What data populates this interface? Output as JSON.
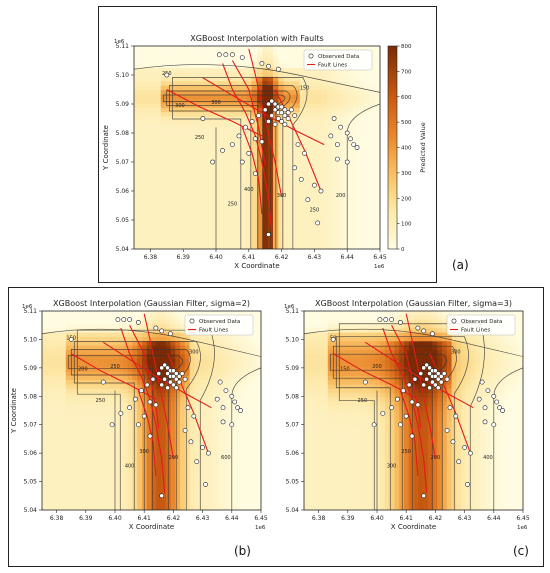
{
  "panel_letters": [
    "(a)",
    "(b)",
    "(c)"
  ],
  "chart_data": [
    {
      "type": "heatmap",
      "title": "XGBoost Interpolation with Faults",
      "xlabel": "X Coordinate",
      "ylabel": "Y Coordinate",
      "x_offset_label": "1e6",
      "y_offset_label": "1e6",
      "xlim": [
        6.375,
        6.45
      ],
      "ylim": [
        5.04,
        5.11
      ],
      "xticks": [
        "6.38",
        "6.39",
        "6.40",
        "6.41",
        "6.42",
        "6.43",
        "6.44",
        "6.45"
      ],
      "yticks": [
        "5.04",
        "5.05",
        "5.06",
        "5.07",
        "5.08",
        "5.09",
        "5.10",
        "5.11"
      ],
      "legend": [
        "Observed Data",
        "Fault Lines"
      ],
      "legend_position": "top-right",
      "colorbar_label": "Predicted Value",
      "colorbar_ticks": [
        "0",
        "100",
        "200",
        "300",
        "400",
        "500",
        "600",
        "700",
        "800"
      ],
      "colorbar_range": [
        0,
        800
      ],
      "contour_labels": [
        "250",
        "300",
        "300",
        "400",
        "250",
        "200",
        "150",
        "250",
        "300",
        "250"
      ]
    },
    {
      "type": "heatmap",
      "title": "XGBoost Interpolation (Gaussian Filter, sigma=2)",
      "xlabel": "X Coordinate",
      "ylabel": "Y Coordinate",
      "x_offset_label": "1e6",
      "y_offset_label": "1e6",
      "xlim": [
        6.375,
        6.45
      ],
      "ylim": [
        5.04,
        5.11
      ],
      "xticks": [
        "6.38",
        "6.39",
        "6.40",
        "6.41",
        "6.42",
        "6.43",
        "6.44",
        "6.45"
      ],
      "yticks": [
        "5.04",
        "5.05",
        "5.06",
        "5.07",
        "5.08",
        "5.09",
        "5.10",
        "5.11"
      ],
      "legend": [
        "Observed Data",
        "Fault Lines"
      ],
      "legend_position": "top-right",
      "contour_labels": [
        "150",
        "200",
        "250",
        "300",
        "400",
        "600",
        "300",
        "250",
        "200"
      ]
    },
    {
      "type": "heatmap",
      "title": "XGBoost Interpolation (Gaussian Filter, sigma=3)",
      "xlabel": "X Coordinate",
      "ylabel": "",
      "x_offset_label": "1e6",
      "y_offset_label": "1e6",
      "xlim": [
        6.375,
        6.45
      ],
      "ylim": [
        5.04,
        5.11
      ],
      "xticks": [
        "6.38",
        "6.39",
        "6.40",
        "6.41",
        "6.42",
        "6.43",
        "6.44",
        "6.45"
      ],
      "yticks": [
        "5.04",
        "5.05",
        "5.06",
        "5.07",
        "5.08",
        "5.09",
        "5.10",
        "5.11"
      ],
      "legend": [
        "Observed Data",
        "Fault Lines"
      ],
      "legend_position": "top-right",
      "contour_labels": [
        "50",
        "150",
        "200",
        "250",
        "300",
        "400",
        "300",
        "250",
        "200"
      ]
    }
  ],
  "observed_points": [
    [
      6.401,
      5.107
    ],
    [
      6.403,
      5.107
    ],
    [
      6.405,
      5.107
    ],
    [
      6.408,
      5.106
    ],
    [
      6.414,
      5.104
    ],
    [
      6.416,
      5.103
    ],
    [
      6.419,
      5.102
    ],
    [
      6.417,
      5.091
    ],
    [
      6.418,
      5.09
    ],
    [
      6.419,
      5.089
    ],
    [
      6.42,
      5.089
    ],
    [
      6.421,
      5.088
    ],
    [
      6.419,
      5.087
    ],
    [
      6.418,
      5.088
    ],
    [
      6.42,
      5.087
    ],
    [
      6.421,
      5.086
    ],
    [
      6.422,
      5.087
    ],
    [
      6.417,
      5.086
    ],
    [
      6.419,
      5.085
    ],
    [
      6.42,
      5.084
    ],
    [
      6.422,
      5.085
    ],
    [
      6.423,
      5.088
    ],
    [
      6.424,
      5.086
    ],
    [
      6.416,
      5.084
    ],
    [
      6.418,
      5.083
    ],
    [
      6.421,
      5.083
    ],
    [
      6.415,
      5.088
    ],
    [
      6.416,
      5.09
    ],
    [
      6.413,
      5.086
    ],
    [
      6.411,
      5.084
    ],
    [
      6.409,
      5.082
    ],
    [
      6.407,
      5.079
    ],
    [
      6.405,
      5.076
    ],
    [
      6.402,
      5.074
    ],
    [
      6.399,
      5.07
    ],
    [
      6.412,
      5.078
    ],
    [
      6.414,
      5.077
    ],
    [
      6.41,
      5.073
    ],
    [
      6.408,
      5.07
    ],
    [
      6.412,
      5.066
    ],
    [
      6.425,
      5.076
    ],
    [
      6.427,
      5.073
    ],
    [
      6.424,
      5.068
    ],
    [
      6.426,
      5.064
    ],
    [
      6.43,
      5.062
    ],
    [
      6.432,
      5.06
    ],
    [
      6.436,
      5.085
    ],
    [
      6.438,
      5.082
    ],
    [
      6.44,
      5.08
    ],
    [
      6.441,
      5.078
    ],
    [
      6.442,
      5.076
    ],
    [
      6.443,
      5.075
    ],
    [
      6.437,
      5.076
    ],
    [
      6.435,
      5.079
    ],
    [
      6.44,
      5.07
    ],
    [
      6.437,
      5.071
    ],
    [
      6.385,
      5.1
    ],
    [
      6.396,
      5.085
    ],
    [
      6.416,
      5.045
    ],
    [
      6.428,
      5.057
    ],
    [
      6.431,
      5.049
    ]
  ],
  "fault_lines": [
    [
      [
        6.402,
        5.104
      ],
      [
        6.405,
        5.095
      ],
      [
        6.409,
        5.087
      ],
      [
        6.412,
        5.079
      ],
      [
        6.414,
        5.07
      ],
      [
        6.416,
        5.058
      ],
      [
        6.417,
        5.046
      ]
    ],
    [
      [
        6.41,
        5.109
      ],
      [
        6.412,
        5.1
      ],
      [
        6.414,
        5.09
      ],
      [
        6.416,
        5.08
      ],
      [
        6.418,
        5.07
      ],
      [
        6.42,
        5.058
      ]
    ],
    [
      [
        6.396,
        5.099
      ],
      [
        6.405,
        5.093
      ],
      [
        6.414,
        5.087
      ],
      [
        6.424,
        5.081
      ],
      [
        6.433,
        5.076
      ]
    ],
    [
      [
        6.385,
        5.095
      ],
      [
        6.395,
        5.089
      ],
      [
        6.405,
        5.084
      ],
      [
        6.414,
        5.079
      ]
    ],
    [
      [
        6.405,
        5.105
      ],
      [
        6.41,
        5.095
      ],
      [
        6.413,
        5.082
      ],
      [
        6.415,
        5.069
      ]
    ],
    [
      [
        6.418,
        5.095
      ],
      [
        6.422,
        5.086
      ],
      [
        6.427,
        5.074
      ],
      [
        6.432,
        5.06
      ]
    ],
    [
      [
        6.408,
        5.082
      ],
      [
        6.411,
        5.073
      ],
      [
        6.413,
        5.064
      ],
      [
        6.414,
        5.052
      ]
    ]
  ],
  "colors": {
    "fault": "#e41a1c",
    "low": "#fff8dd",
    "mid": "#f6b25a",
    "high": "#c0570f",
    "max": "#7a2b05"
  }
}
